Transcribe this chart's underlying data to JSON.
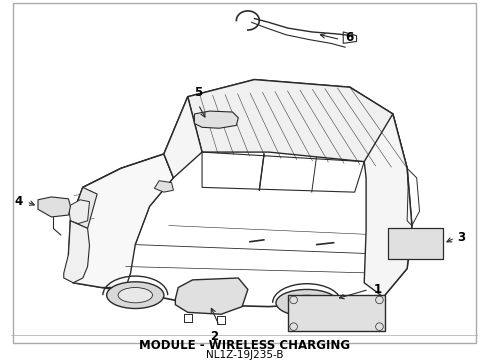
{
  "title": "",
  "subtitle": "MODULE - WIRELESS CHARGING",
  "part_number": "NL1Z-19J235-B",
  "background_color": "#ffffff",
  "line_color": "#2a2a2a",
  "label_color": "#000000",
  "fig_width": 4.89,
  "fig_height": 3.6,
  "dpi": 100,
  "border_color": "#bbbbbb",
  "header_text_color": "#000000",
  "subtitle_fontsize": 8.5,
  "partno_fontsize": 7.5,
  "label_fontsize": 8.5
}
